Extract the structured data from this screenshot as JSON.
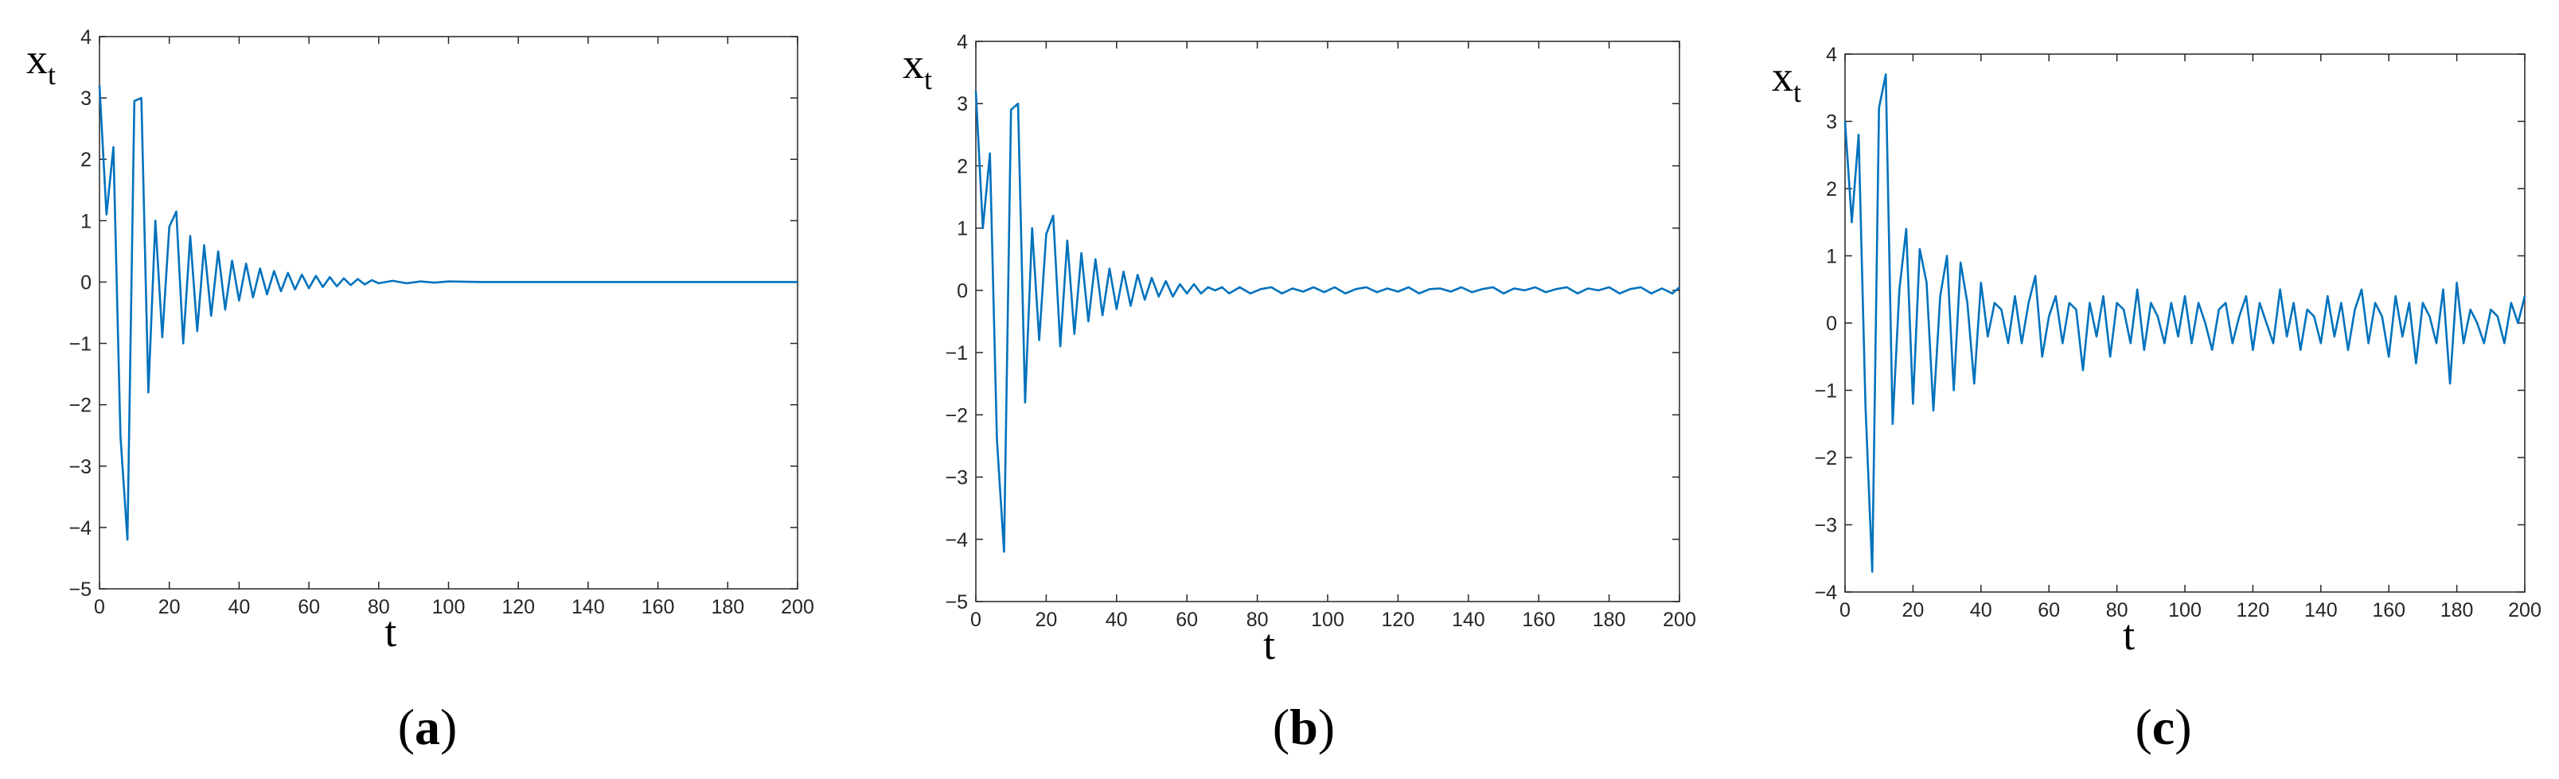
{
  "chart_data": [
    {
      "type": "line",
      "caption": "a",
      "ylabel": "x",
      "ylabel_subscript": "t",
      "xlabel": "t",
      "xlim": [
        0,
        200
      ],
      "ylim": [
        -5,
        4
      ],
      "xticks": [
        0,
        20,
        40,
        60,
        80,
        100,
        120,
        140,
        160,
        180,
        200
      ],
      "yticks": [
        -5,
        -4,
        -3,
        -2,
        -1,
        0,
        1,
        2,
        3,
        4
      ],
      "grid": false,
      "line_color": "#0072BD",
      "series": [
        {
          "x": [
            0,
            2,
            4,
            6,
            8,
            10,
            12,
            14,
            16,
            18,
            20,
            22,
            24,
            26,
            28,
            30,
            32,
            34,
            36,
            38,
            40,
            42,
            44,
            46,
            48,
            50,
            52,
            54,
            56,
            58,
            60,
            62,
            64,
            66,
            68,
            70,
            72,
            74,
            76,
            78,
            80,
            84,
            88,
            92,
            96,
            100,
            110,
            120,
            140,
            160,
            180,
            200
          ],
          "y": [
            3.2,
            1.1,
            2.2,
            -2.5,
            -4.2,
            2.95,
            3.0,
            -1.8,
            1.0,
            -0.9,
            0.9,
            1.15,
            -1.0,
            0.75,
            -0.8,
            0.6,
            -0.55,
            0.5,
            -0.45,
            0.35,
            -0.3,
            0.3,
            -0.25,
            0.22,
            -0.2,
            0.18,
            -0.15,
            0.15,
            -0.12,
            0.12,
            -0.1,
            0.1,
            -0.08,
            0.08,
            -0.07,
            0.06,
            -0.05,
            0.05,
            -0.04,
            0.03,
            -0.02,
            0.02,
            -0.02,
            0.01,
            -0.01,
            0.01,
            0.0,
            0.0,
            0.0,
            0.0,
            0.0,
            0.0
          ]
        }
      ]
    },
    {
      "type": "line",
      "caption": "b",
      "ylabel": "x",
      "ylabel_subscript": "t",
      "xlabel": "t",
      "xlim": [
        0,
        200
      ],
      "ylim": [
        -5,
        4
      ],
      "xticks": [
        0,
        20,
        40,
        60,
        80,
        100,
        120,
        140,
        160,
        180,
        200
      ],
      "yticks": [
        -5,
        -4,
        -3,
        -2,
        -1,
        0,
        1,
        2,
        3,
        4
      ],
      "grid": false,
      "line_color": "#0072BD",
      "series": [
        {
          "x": [
            0,
            2,
            4,
            6,
            8,
            10,
            12,
            14,
            16,
            18,
            20,
            22,
            24,
            26,
            28,
            30,
            32,
            34,
            36,
            38,
            40,
            42,
            44,
            46,
            48,
            50,
            52,
            54,
            56,
            58,
            60,
            62,
            64,
            66,
            68,
            70,
            72,
            75,
            78,
            81,
            84,
            87,
            90,
            93,
            96,
            99,
            102,
            105,
            108,
            111,
            114,
            117,
            120,
            123,
            126,
            129,
            132,
            135,
            138,
            141,
            144,
            147,
            150,
            153,
            156,
            159,
            162,
            165,
            168,
            171,
            174,
            177,
            180,
            183,
            186,
            189,
            192,
            195,
            198,
            200
          ],
          "y": [
            3.2,
            1.0,
            2.2,
            -2.4,
            -4.2,
            2.9,
            3.0,
            -1.8,
            1.0,
            -0.8,
            0.9,
            1.2,
            -0.9,
            0.8,
            -0.7,
            0.6,
            -0.5,
            0.5,
            -0.4,
            0.35,
            -0.3,
            0.3,
            -0.25,
            0.25,
            -0.15,
            0.2,
            -0.1,
            0.15,
            -0.1,
            0.1,
            -0.05,
            0.1,
            -0.05,
            0.05,
            0.0,
            0.05,
            -0.05,
            0.05,
            -0.05,
            0.02,
            0.05,
            -0.05,
            0.03,
            -0.02,
            0.05,
            -0.03,
            0.05,
            -0.05,
            0.02,
            0.05,
            -0.03,
            0.03,
            -0.02,
            0.05,
            -0.05,
            0.02,
            0.03,
            -0.02,
            0.05,
            -0.03,
            0.02,
            0.05,
            -0.05,
            0.03,
            0.0,
            0.05,
            -0.03,
            0.02,
            0.05,
            -0.05,
            0.03,
            0.0,
            0.05,
            -0.05,
            0.02,
            0.05,
            -0.05,
            0.03,
            -0.05,
            0.05
          ]
        }
      ]
    },
    {
      "type": "line",
      "caption": "c",
      "ylabel": "x",
      "ylabel_subscript": "t",
      "xlabel": "t",
      "xlim": [
        0,
        200
      ],
      "ylim": [
        -4,
        4
      ],
      "xticks": [
        0,
        20,
        40,
        60,
        80,
        100,
        120,
        140,
        160,
        180,
        200
      ],
      "yticks": [
        -4,
        -3,
        -2,
        -1,
        0,
        1,
        2,
        3,
        4
      ],
      "grid": false,
      "line_color": "#0072BD",
      "series": [
        {
          "x": [
            0,
            2,
            4,
            6,
            8,
            10,
            12,
            14,
            16,
            18,
            20,
            22,
            24,
            26,
            28,
            30,
            32,
            34,
            36,
            38,
            40,
            42,
            44,
            46,
            48,
            50,
            52,
            54,
            56,
            58,
            60,
            62,
            64,
            66,
            68,
            70,
            72,
            74,
            76,
            78,
            80,
            82,
            84,
            86,
            88,
            90,
            92,
            94,
            96,
            98,
            100,
            102,
            104,
            106,
            108,
            110,
            112,
            114,
            116,
            118,
            120,
            122,
            124,
            126,
            128,
            130,
            132,
            134,
            136,
            138,
            140,
            142,
            144,
            146,
            148,
            150,
            152,
            154,
            156,
            158,
            160,
            162,
            164,
            166,
            168,
            170,
            172,
            174,
            176,
            178,
            180,
            182,
            184,
            186,
            188,
            190,
            192,
            194,
            196,
            198,
            200
          ],
          "y": [
            3.0,
            1.5,
            2.8,
            -1.2,
            -3.7,
            3.2,
            3.7,
            -1.5,
            0.5,
            1.4,
            -1.2,
            1.1,
            0.6,
            -1.3,
            0.4,
            1.0,
            -1.0,
            0.9,
            0.3,
            -0.9,
            0.6,
            -0.2,
            0.3,
            0.2,
            -0.3,
            0.4,
            -0.3,
            0.3,
            0.7,
            -0.5,
            0.1,
            0.4,
            -0.3,
            0.3,
            0.2,
            -0.7,
            0.3,
            -0.2,
            0.4,
            -0.5,
            0.3,
            0.2,
            -0.3,
            0.5,
            -0.4,
            0.3,
            0.1,
            -0.3,
            0.3,
            -0.2,
            0.4,
            -0.3,
            0.3,
            0.0,
            -0.4,
            0.2,
            0.3,
            -0.3,
            0.1,
            0.4,
            -0.4,
            0.3,
            0.0,
            -0.3,
            0.5,
            -0.2,
            0.3,
            -0.4,
            0.2,
            0.1,
            -0.3,
            0.4,
            -0.2,
            0.3,
            -0.4,
            0.2,
            0.5,
            -0.3,
            0.3,
            0.1,
            -0.5,
            0.4,
            -0.2,
            0.3,
            -0.6,
            0.3,
            0.1,
            -0.3,
            0.5,
            -0.9,
            0.6,
            -0.3,
            0.2,
            0.0,
            -0.3,
            0.2,
            0.1,
            -0.3,
            0.3,
            0.0,
            0.4
          ]
        }
      ]
    }
  ]
}
